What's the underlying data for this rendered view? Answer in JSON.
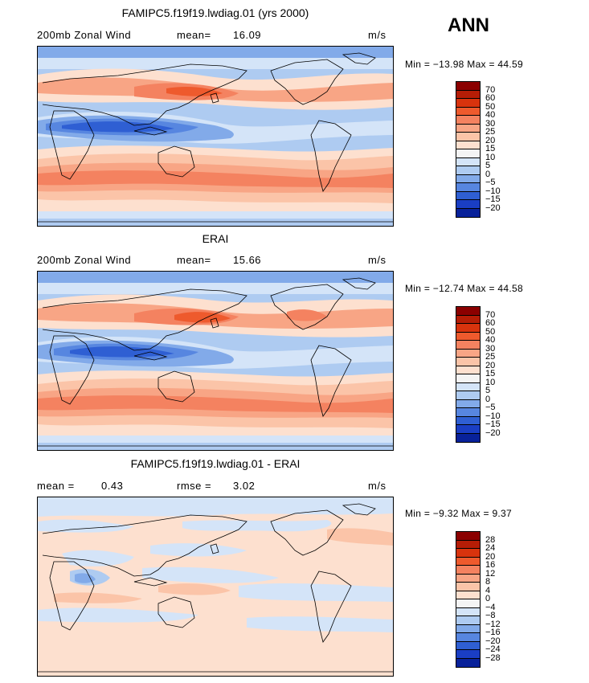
{
  "season": "ANN",
  "panels": [
    {
      "title": "FAMIPC5.f19f19.lwdiag.01 (yrs 2000)",
      "left_label": "200mb Zonal Wind",
      "stat1_label": "mean=",
      "stat1_value": "16.09",
      "units": "m/s",
      "minmax": "Min = −13.98 Max =  44.59",
      "colorbar_labels": [
        "70",
        "60",
        "50",
        "40",
        "30",
        "25",
        "20",
        "15",
        "10",
        "5",
        "0",
        "−5",
        "−10",
        "−15",
        "−20"
      ],
      "colorbar_colors": [
        "#8b0000",
        "#b51d06",
        "#d8330d",
        "#ee5a2d",
        "#f48260",
        "#f8a585",
        "#fbc4a8",
        "#fde0cf",
        "#f4f4f4",
        "#d4e4f8",
        "#aecbf1",
        "#82aae9",
        "#5786e0",
        "#2f5fd3",
        "#1a3ec4",
        "#08219a"
      ]
    },
    {
      "title": "ERAI",
      "left_label": "200mb Zonal Wind",
      "stat1_label": "mean=",
      "stat1_value": "15.66",
      "units": "m/s",
      "minmax": "Min = −12.74 Max =  44.58",
      "colorbar_labels": [
        "70",
        "60",
        "50",
        "40",
        "30",
        "25",
        "20",
        "15",
        "10",
        "5",
        "0",
        "−5",
        "−10",
        "−15",
        "−20"
      ],
      "colorbar_colors": [
        "#8b0000",
        "#b51d06",
        "#d8330d",
        "#ee5a2d",
        "#f48260",
        "#f8a585",
        "#fbc4a8",
        "#fde0cf",
        "#f4f4f4",
        "#d4e4f8",
        "#aecbf1",
        "#82aae9",
        "#5786e0",
        "#2f5fd3",
        "#1a3ec4",
        "#08219a"
      ]
    },
    {
      "title": "FAMIPC5.f19f19.lwdiag.01 - ERAI",
      "left_label": "mean =",
      "left_value": "0.43",
      "stat1_label": "rmse =",
      "stat1_value": "3.02",
      "units": "m/s",
      "minmax": "Min =  −9.32 Max =   9.37",
      "colorbar_labels": [
        "28",
        "24",
        "20",
        "16",
        "12",
        "8",
        "4",
        "0",
        "−4",
        "−8",
        "−12",
        "−16",
        "−20",
        "−24",
        "−28"
      ],
      "colorbar_colors": [
        "#8b0000",
        "#b51d06",
        "#d8330d",
        "#ee5a2d",
        "#f48260",
        "#f8a585",
        "#fbc4a8",
        "#fde0cf",
        "#f4f4f4",
        "#d4e4f8",
        "#aecbf1",
        "#82aae9",
        "#5786e0",
        "#2f5fd3",
        "#1a3ec4",
        "#08219a"
      ]
    }
  ]
}
